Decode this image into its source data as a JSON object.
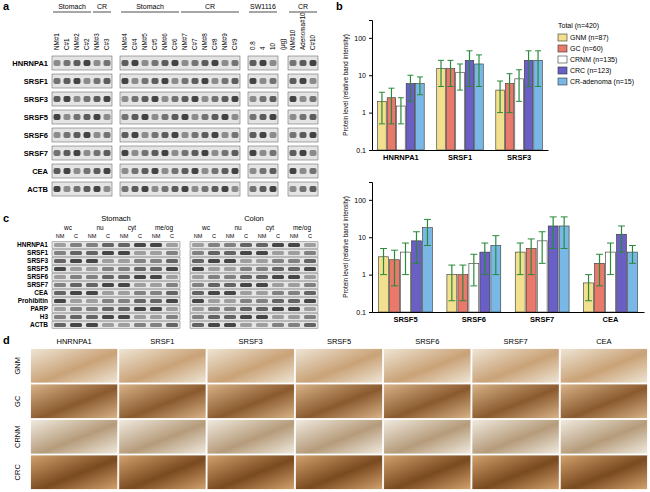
{
  "panel_labels": [
    "a",
    "b",
    "c",
    "d"
  ],
  "panel_a": {
    "blocks": [
      {
        "groups": [
          {
            "label": "Stomach",
            "lanes": [
              "NM#1",
              "C#1",
              "NM#2",
              "C#2"
            ]
          },
          {
            "label": "CR",
            "lanes": [
              "NM#3",
              "C#3"
            ]
          }
        ]
      },
      {
        "groups": [
          {
            "label": "Stomach",
            "lanes": [
              "NM#4",
              "C#4",
              "NM#5",
              "C#5",
              "NM#6",
              "C#6"
            ]
          },
          {
            "label": "CR",
            "lanes": [
              "NM#7",
              "C#7",
              "NM#8",
              "C#8",
              "NM#9",
              "C#9"
            ]
          }
        ]
      },
      {
        "groups": [
          {
            "label": "SW1116",
            "lanes": [
              "0.8",
              "4",
              "10"
            ],
            "unit": "(μg)"
          }
        ]
      },
      {
        "groups": [
          {
            "label": "CR",
            "lanes": [
              "NM#10",
              "Adenoma#10",
              "C#10"
            ]
          }
        ]
      }
    ],
    "rows": [
      "HNRNPA1",
      "SRSF1",
      "SRSF3",
      "SRSF5",
      "SRSF6",
      "SRSF7",
      "CEA",
      "ACTB"
    ]
  },
  "panel_c": {
    "blocks": [
      {
        "label": "Stomach",
        "fractions": [
          "wc",
          "nu",
          "cyt",
          "me/og"
        ],
        "lanes": [
          "NM",
          "C"
        ]
      },
      {
        "label": "Colon",
        "fractions": [
          "wc",
          "nu",
          "cyt",
          "me/og"
        ],
        "lanes": [
          "NM",
          "C"
        ]
      }
    ],
    "rows": [
      "HNRNPA1",
      "SRSF1",
      "SRSF3",
      "SRSF5",
      "SRSF6",
      "SRSF7",
      "CEA",
      "Prohibitin",
      "PARP",
      "H3",
      "ACTB"
    ]
  },
  "panel_d": {
    "columns": [
      "HNRNPA1",
      "SRSF1",
      "SRSF3",
      "SRSF5",
      "SRSF6",
      "SRSF7",
      "CEA"
    ],
    "rows": [
      "GNM",
      "GC",
      "CRNM",
      "CRC"
    ]
  },
  "chart_data": [
    {
      "type": "bar",
      "y_label": "Protein level (relative band intensity)",
      "categories": [
        "HNRNPA1",
        "SRSF1",
        "SRSF3"
      ],
      "series": [
        {
          "name": "GNM (n=87)",
          "color": "#f2e08e",
          "values": [
            2.0,
            15,
            4
          ],
          "errors": [
            1.5,
            10,
            3
          ]
        },
        {
          "name": "GC (n=60)",
          "color": "#e8796b",
          "values": [
            2.5,
            15,
            6
          ],
          "errors": [
            2,
            10,
            5
          ]
        },
        {
          "name": "CRNM (n=135)",
          "color": "#ffffff",
          "values": [
            1.5,
            12,
            8
          ],
          "errors": [
            1,
            8,
            6
          ]
        },
        {
          "name": "CRC (n=123)",
          "color": "#6a5fc4",
          "values": [
            6,
            25,
            25
          ],
          "errors": [
            4,
            20,
            20
          ]
        },
        {
          "name": "CR-adenoma (n=15)",
          "color": "#79b8e6",
          "values": [
            6,
            20,
            25
          ],
          "errors": [
            3,
            15,
            20
          ]
        }
      ],
      "legend_title": "Total (n=420)",
      "legend": "right",
      "log": "y",
      "ylim": [
        0.1,
        300
      ],
      "yticks": [
        0.1,
        1,
        10,
        100
      ]
    },
    {
      "type": "bar",
      "y_label": "Protein level (relative band intensity)",
      "categories": [
        "SRSF5",
        "SRSF6",
        "SRSF7",
        "CEA"
      ],
      "series": [
        {
          "color": "#f2e08e",
          "values": [
            3,
            1,
            4,
            0.6
          ],
          "errors": [
            2,
            0.8,
            3,
            0.4
          ]
        },
        {
          "color": "#e8796b",
          "values": [
            2.5,
            1,
            5,
            2
          ],
          "errors": [
            2,
            0.8,
            4,
            1.5
          ]
        },
        {
          "color": "#ffffff",
          "values": [
            4,
            2,
            8,
            4
          ],
          "errors": [
            3,
            1.5,
            6,
            3
          ]
        },
        {
          "color": "#6a5fc4",
          "values": [
            8,
            4,
            20,
            12
          ],
          "errors": [
            6,
            3,
            15,
            8
          ]
        },
        {
          "color": "#79b8e6",
          "values": [
            18,
            6,
            20,
            4
          ],
          "errors": [
            12,
            5,
            15,
            2
          ]
        }
      ],
      "log": "y",
      "ylim": [
        0.1,
        300
      ],
      "yticks": [
        0.1,
        1,
        10,
        100
      ]
    }
  ]
}
